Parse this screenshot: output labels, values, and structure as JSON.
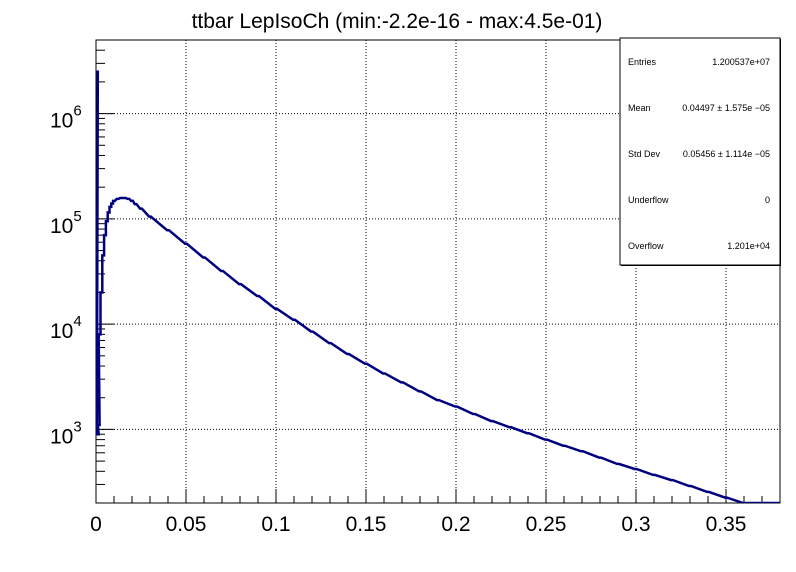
{
  "title": "ttbar LepIsoCh (min:-2.2e-16 - max:4.5e-01)",
  "stats": {
    "rows": [
      {
        "label": "Entries",
        "value": "1.200537e+07"
      },
      {
        "label": "Mean",
        "value": "0.04497  ± 1.575e −05"
      },
      {
        "label": "Std Dev",
        "value": "0.05456  ± 1.114e −05"
      },
      {
        "label": "Underflow",
        "value": "0"
      },
      {
        "label": "Overflow",
        "value": "1.201e+04"
      }
    ]
  },
  "colors": {
    "series": "#000080",
    "grid": "#000000",
    "frame": "#000000"
  },
  "chart_data": {
    "type": "line",
    "title": "ttbar LepIsoCh (min:-2.2e-16 - max:4.5e-01)",
    "xlabel": "",
    "ylabel": "",
    "xlim": [
      0,
      0.38
    ],
    "ylim": [
      200,
      5000000
    ],
    "yscale": "log",
    "grid": true,
    "legend": "none",
    "x_ticks": [
      "0",
      "0.05",
      "0.1",
      "0.15",
      "0.2",
      "0.25",
      "0.3",
      "0.35"
    ],
    "x_tick_values": [
      0,
      0.05,
      0.1,
      0.15,
      0.2,
      0.25,
      0.3,
      0.35
    ],
    "y_ticks": [
      {
        "base": "10",
        "exp": "3",
        "value": 1000
      },
      {
        "base": "10",
        "exp": "4",
        "value": 10000
      },
      {
        "base": "10",
        "exp": "5",
        "value": 100000
      },
      {
        "base": "10",
        "exp": "6",
        "value": 1000000
      }
    ],
    "series": [
      {
        "x": [
          0.0005,
          0.001,
          0.0015,
          0.002,
          0.003,
          0.004,
          0.005,
          0.006,
          0.007,
          0.008,
          0.009,
          0.01,
          0.012,
          0.014,
          0.016,
          0.018,
          0.02,
          0.022,
          0.025,
          0.03,
          0.04,
          0.05,
          0.06,
          0.07,
          0.08,
          0.09,
          0.1,
          0.11,
          0.12,
          0.13,
          0.14,
          0.15,
          0.16,
          0.17,
          0.18,
          0.19,
          0.2,
          0.21,
          0.22,
          0.23,
          0.24,
          0.25,
          0.26,
          0.27,
          0.28,
          0.29,
          0.3,
          0.31,
          0.32,
          0.33,
          0.34,
          0.35,
          0.36,
          0.37,
          0.38
        ],
        "values": [
          2500000,
          900,
          1100,
          8000,
          20000,
          45000,
          70000,
          95000,
          115000,
          130000,
          140000,
          148000,
          155000,
          158000,
          158000,
          155000,
          148000,
          138000,
          125000,
          105000,
          78000,
          58000,
          43000,
          32000,
          24000,
          18500,
          14000,
          11000,
          8500,
          6600,
          5200,
          4200,
          3400,
          2800,
          2300,
          1900,
          1650,
          1400,
          1200,
          1050,
          920,
          800,
          700,
          620,
          540,
          470,
          420,
          370,
          330,
          290,
          255,
          225,
          200,
          175,
          155
        ]
      }
    ]
  }
}
